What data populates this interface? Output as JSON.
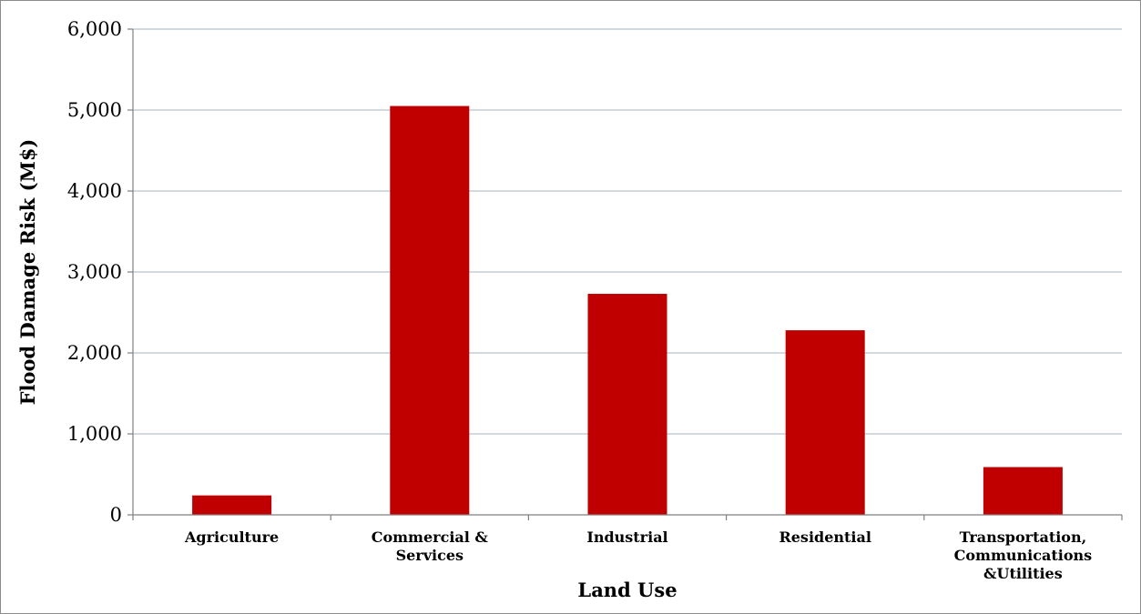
{
  "chart_data": {
    "type": "bar",
    "categories": [
      [
        "Agriculture"
      ],
      [
        "Commercial &",
        "Services"
      ],
      [
        "Industrial"
      ],
      [
        "Residential"
      ],
      [
        "Transportation,",
        "Communications",
        "&Utilities"
      ]
    ],
    "values": [
      240,
      5050,
      2730,
      2280,
      590
    ],
    "xlabel": "Land Use",
    "ylabel": "Flood Damage Risk (M$)",
    "ylim": [
      0,
      6000
    ],
    "yticks": [
      0,
      1000,
      2000,
      3000,
      4000,
      5000,
      6000
    ],
    "ytick_labels": [
      "0",
      "1,000",
      "2,000",
      "3,000",
      "4,000",
      "5,000",
      "6,000"
    ],
    "bar_color": "#c00000",
    "gridline_color": "#b8c4cc",
    "axis_color": "#808080",
    "grid": true,
    "legend": "none"
  }
}
